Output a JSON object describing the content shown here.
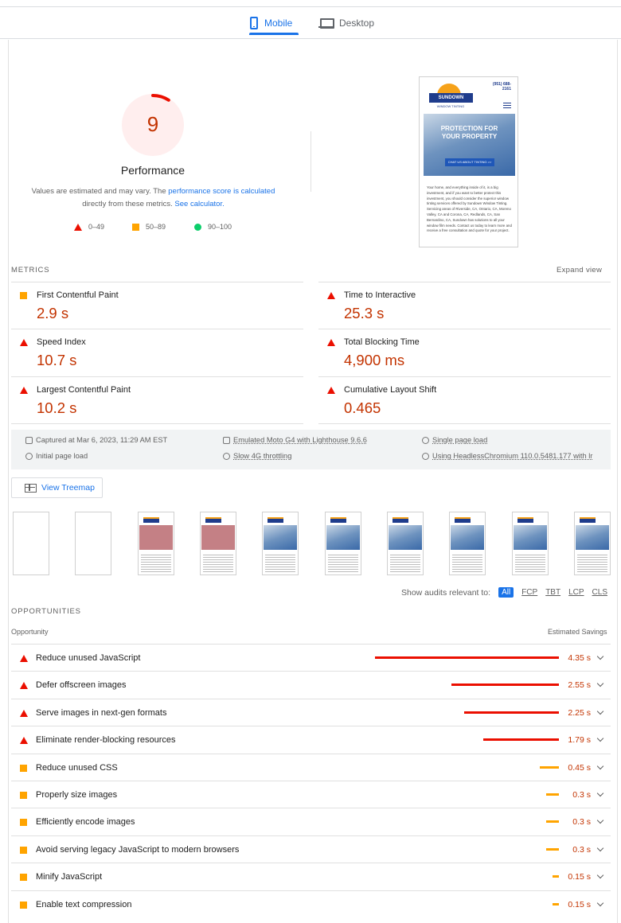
{
  "tabs": [
    {
      "label": "Mobile",
      "active": true,
      "icon": "phone-icon"
    },
    {
      "label": "Desktop",
      "active": false,
      "icon": "laptop-icon"
    }
  ],
  "gauge": {
    "score": "9",
    "score_fraction": 0.09,
    "title": "Performance",
    "color": "#c33300"
  },
  "note": {
    "text1": "Values are estimated and may vary. The ",
    "link1": "performance score is calculated",
    "text2": "directly from these metrics. ",
    "link2": "See calculator."
  },
  "legend": [
    {
      "label": "0–49",
      "shape": "triangle",
      "color": "#eb0f00"
    },
    {
      "label": "50–89",
      "shape": "square",
      "color": "#ffa400"
    },
    {
      "label": "90–100",
      "shape": "circle",
      "color": "#0cce6b"
    }
  ],
  "screenshot": {
    "phone": "(951) 688-\n2161",
    "logo": "SUNDOWN",
    "logo_sub": "WINDOW TINTING",
    "hero_title": "PROTECTION FOR YOUR PROPERTY",
    "hero_button": "CHAT US ABOUT TINTING >>",
    "body": "Your home, and everything inside of it, is a big investment, and if you want to better protect this investment, you should consider the superior window tinting services offered by Sundown Window Tinting. Servicing areas of Riverside, CA, Ontario, CA, Moreno Valley, CA and Corona, CA, Redlands, CA, San Bernardino, CA, Sundown has solutions to all your window film needs. Contact us today to learn more and receive a free consultation and quote for your project."
  },
  "metrics": {
    "label": "METRICS",
    "expand": "Expand view",
    "items": [
      {
        "name": "First Contentful Paint",
        "value": "2.9 s",
        "rating": "average"
      },
      {
        "name": "Time to Interactive",
        "value": "25.3 s",
        "rating": "fail"
      },
      {
        "name": "Speed Index",
        "value": "10.7 s",
        "rating": "fail"
      },
      {
        "name": "Total Blocking Time",
        "value": "4,900 ms",
        "rating": "fail"
      },
      {
        "name": "Largest Contentful Paint",
        "value": "10.2 s",
        "rating": "fail"
      },
      {
        "name": "Cumulative Layout Shift",
        "value": "0.465",
        "rating": "fail"
      }
    ]
  },
  "info": {
    "captured": "Captured at Mar 6, 2023, 11:29 AM EST",
    "device": "Emulated Moto G4 with Lighthouse 9.6.6",
    "session": "Single page load",
    "load": "Initial page load",
    "throttle": "Slow 4G throttling",
    "browser": "Using HeadlessChromium 110.0.5481.177 with lr"
  },
  "treemap_label": "View Treemap",
  "filter": {
    "label": "Show audits relevant to:",
    "chips": [
      "All",
      "FCP",
      "TBT",
      "LCP",
      "CLS"
    ],
    "active": "All"
  },
  "opportunities": {
    "label": "OPPORTUNITIES",
    "col_left": "Opportunity",
    "col_right": "Estimated Savings",
    "items": [
      {
        "name": "Reduce unused JavaScript",
        "savings": "4.35 s",
        "rating": "fail",
        "seconds": 4.35
      },
      {
        "name": "Defer offscreen images",
        "savings": "2.55 s",
        "rating": "fail",
        "seconds": 2.55
      },
      {
        "name": "Serve images in next-gen formats",
        "savings": "2.25 s",
        "rating": "fail",
        "seconds": 2.25
      },
      {
        "name": "Eliminate render-blocking resources",
        "savings": "1.79 s",
        "rating": "fail",
        "seconds": 1.79
      },
      {
        "name": "Reduce unused CSS",
        "savings": "0.45 s",
        "rating": "average",
        "seconds": 0.45
      },
      {
        "name": "Properly size images",
        "savings": "0.3 s",
        "rating": "average",
        "seconds": 0.3
      },
      {
        "name": "Efficiently encode images",
        "savings": "0.3 s",
        "rating": "average",
        "seconds": 0.3
      },
      {
        "name": "Avoid serving legacy JavaScript to modern browsers",
        "savings": "0.3 s",
        "rating": "average",
        "seconds": 0.3
      },
      {
        "name": "Minify JavaScript",
        "savings": "0.15 s",
        "rating": "average",
        "seconds": 0.15
      },
      {
        "name": "Enable text compression",
        "savings": "0.15 s",
        "rating": "average",
        "seconds": 0.15
      }
    ]
  },
  "colors": {
    "fail": "#eb0f00",
    "average": "#ffa400",
    "pass": "#0cce6b",
    "accent": "#1a73e8"
  }
}
